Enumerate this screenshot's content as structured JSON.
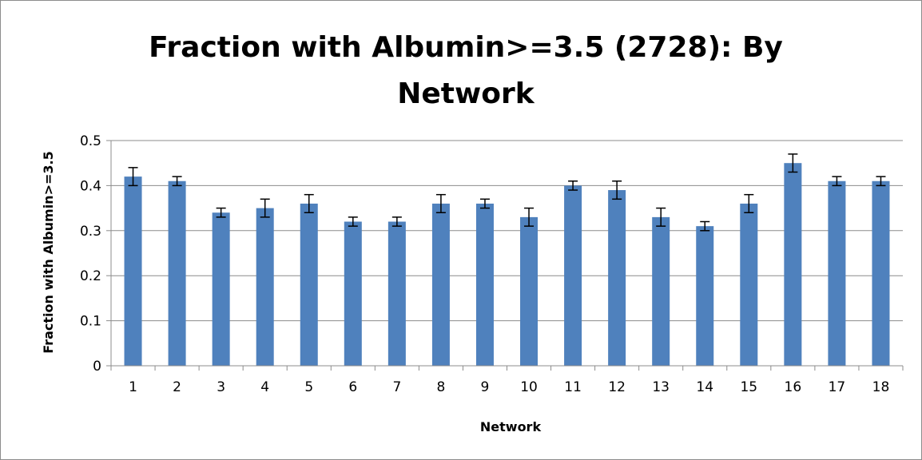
{
  "chart_data": {
    "type": "bar",
    "title_lines": [
      "Fraction with Albumin>=3.5 (2728): By",
      "Network"
    ],
    "xlabel": "Network",
    "ylabel": "Fraction with Albumin>=3.5",
    "categories": [
      "1",
      "2",
      "3",
      "4",
      "5",
      "6",
      "7",
      "8",
      "9",
      "10",
      "11",
      "12",
      "13",
      "14",
      "15",
      "16",
      "17",
      "18"
    ],
    "values": [
      0.42,
      0.41,
      0.34,
      0.35,
      0.36,
      0.32,
      0.32,
      0.36,
      0.36,
      0.33,
      0.4,
      0.39,
      0.33,
      0.31,
      0.36,
      0.45,
      0.41,
      0.41
    ],
    "error": [
      0.02,
      0.01,
      0.01,
      0.02,
      0.02,
      0.01,
      0.01,
      0.02,
      0.01,
      0.02,
      0.01,
      0.02,
      0.02,
      0.01,
      0.02,
      0.02,
      0.01,
      0.01
    ],
    "ylim": [
      0,
      0.5
    ],
    "yticks": [
      "0",
      "0.1",
      "0.2",
      "0.3",
      "0.4",
      "0.5"
    ],
    "grid": true,
    "legend": "none",
    "colors": {
      "bar": "#4f81bd",
      "grid": "#8c8c8c",
      "axis": "#8c8c8c",
      "error": "#000000"
    }
  }
}
